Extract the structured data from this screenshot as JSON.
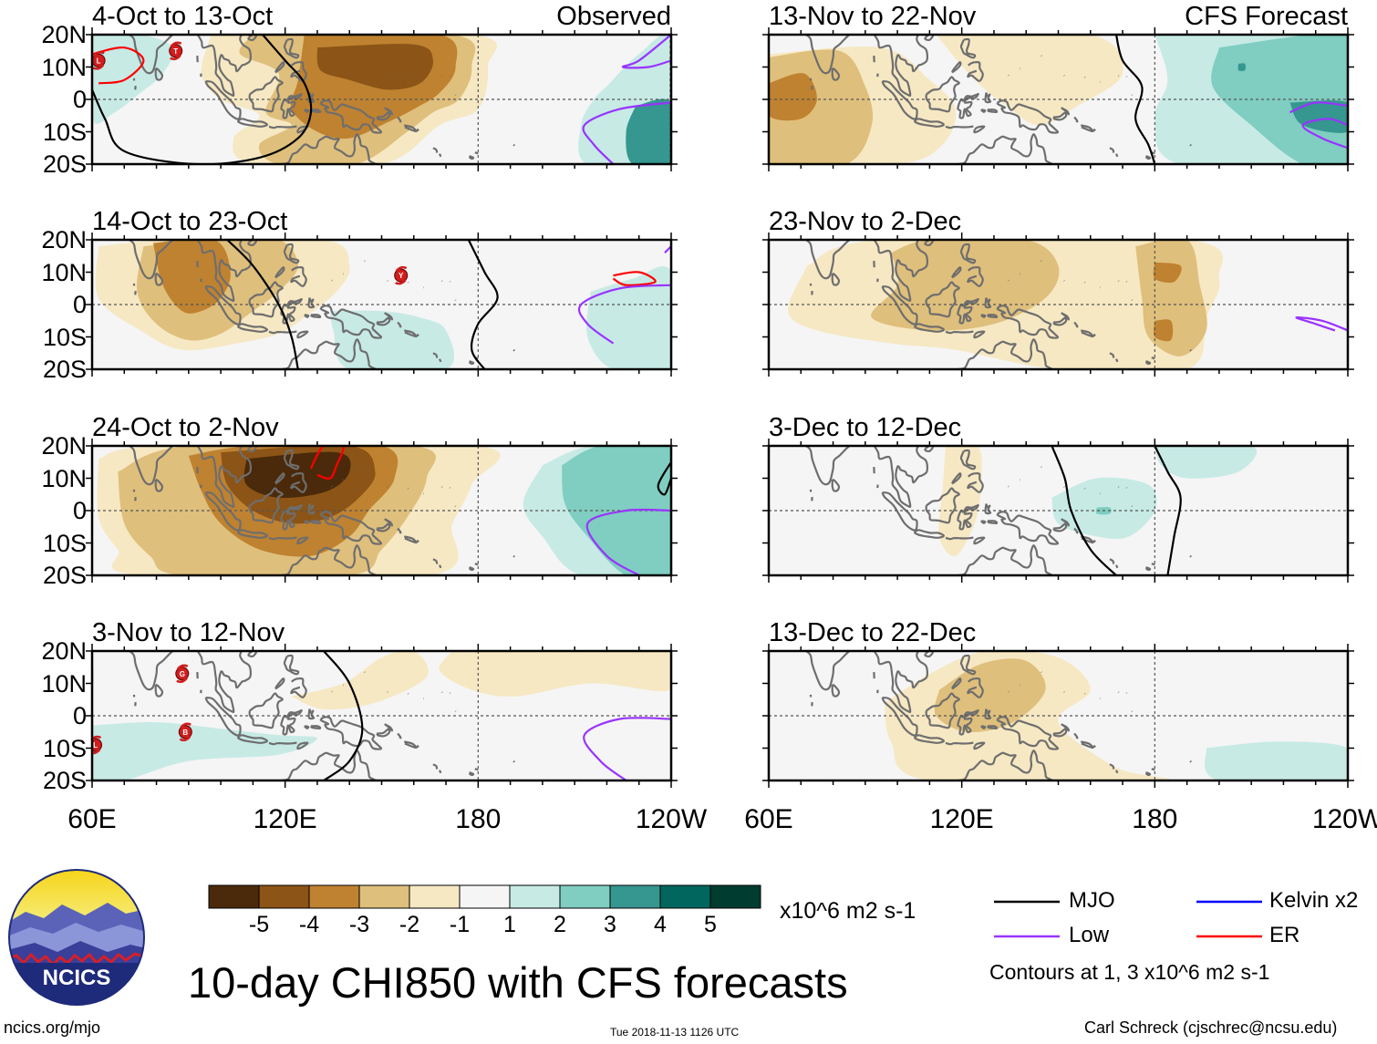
{
  "main_title": "10-day CHI850 with CFS forecasts",
  "column_labels": {
    "left": "Observed",
    "right": "CFS Forecast"
  },
  "panels": [
    {
      "title": "4-Oct to 13-Oct"
    },
    {
      "title": "14-Oct to 23-Oct"
    },
    {
      "title": "24-Oct to 2-Nov"
    },
    {
      "title": "3-Nov to 12-Nov"
    },
    {
      "title": "13-Nov to 22-Nov"
    },
    {
      "title": "23-Nov to 2-Dec"
    },
    {
      "title": "3-Dec to 12-Dec"
    },
    {
      "title": "13-Dec to 22-Dec"
    }
  ],
  "lat_ticks": [
    "20N",
    "10N",
    "0",
    "10S",
    "20S"
  ],
  "lon_ticks": [
    "60E",
    "120E",
    "180",
    "120W"
  ],
  "colorbar": {
    "units": "x10^6 m2 s-1",
    "labels": [
      "-5",
      "-4",
      "-3",
      "-2",
      "-1",
      "1",
      "2",
      "3",
      "4",
      "5"
    ],
    "colors": [
      "#4a2a0a",
      "#8c5416",
      "#bf8230",
      "#dfbf7c",
      "#f6e8c3",
      "#f5f5f5",
      "#c7eae5",
      "#80cdc1",
      "#35978f",
      "#01665e",
      "#003c30"
    ]
  },
  "legend": {
    "items": [
      {
        "label": "MJO",
        "color": "#000000"
      },
      {
        "label": "Kelvin x2",
        "color": "#0000ff"
      },
      {
        "label": "Low",
        "color": "#9933ff"
      },
      {
        "label": "ER",
        "color": "#ff0000"
      }
    ],
    "contours_note": "Contours at 1, 3 x10^6 m2 s-1"
  },
  "footer": {
    "url": "ncics.org/mjo",
    "timestamp": "Tue 2018-11-13 1126 UTC",
    "author": "Carl Schreck (cjschrec@ncsu.edu)"
  },
  "logo_text": "NCICS"
}
